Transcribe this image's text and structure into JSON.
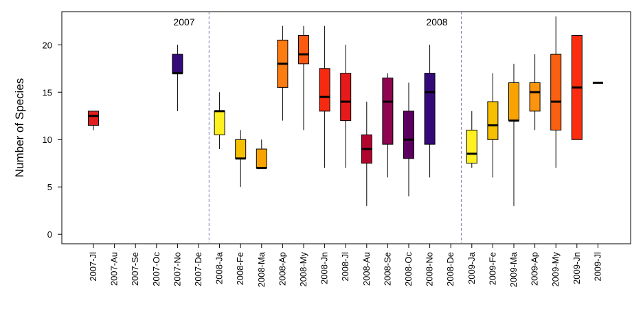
{
  "chart_data": {
    "type": "boxplot",
    "title": "",
    "xlabel": "",
    "ylabel": "Number of Species",
    "ylim": [
      -1,
      23.5
    ],
    "yticks": [
      0,
      5,
      10,
      15,
      20
    ],
    "grid": false,
    "legend": "none",
    "annotations": [
      "2007",
      "2008"
    ],
    "year_dividers_after": [
      "2007-De",
      "2008-De"
    ],
    "divider_color": "#7f7fbf",
    "boxes": [
      {
        "label": "2007-Jl",
        "min": 11,
        "q1": 11.5,
        "median": 12.5,
        "q3": 13,
        "max": 13,
        "color": "#e01e1e"
      },
      {
        "label": "2007-Au"
      },
      {
        "label": "2007-Se"
      },
      {
        "label": "2007-Oc"
      },
      {
        "label": "2007-No",
        "min": 13,
        "q1": 17,
        "median": 17,
        "q3": 19,
        "max": 20,
        "color": "#34097a"
      },
      {
        "label": "2007-De"
      },
      {
        "label": "2008-Ja",
        "min": 9,
        "q1": 10.5,
        "median": 13,
        "q3": 13,
        "max": 15,
        "color": "#fff020"
      },
      {
        "label": "2008-Fe",
        "min": 5,
        "q1": 8,
        "median": 8,
        "q3": 10,
        "max": 11,
        "color": "#f6c000"
      },
      {
        "label": "2008-Ma",
        "min": 7,
        "q1": 7,
        "median": 7,
        "q3": 9,
        "max": 10,
        "color": "#f9a300"
      },
      {
        "label": "2008-Ap",
        "min": 12,
        "q1": 15.5,
        "median": 18,
        "q3": 20.5,
        "max": 22,
        "color": "#fb7c10"
      },
      {
        "label": "2008-My",
        "min": 11,
        "q1": 18,
        "median": 19,
        "q3": 21,
        "max": 22,
        "color": "#fb5a10"
      },
      {
        "label": "2008-Jn",
        "min": 7,
        "q1": 13,
        "median": 14.5,
        "q3": 17.5,
        "max": 22,
        "color": "#f52a10"
      },
      {
        "label": "2008-Jl",
        "min": 7,
        "q1": 12,
        "median": 14,
        "q3": 17,
        "max": 20,
        "color": "#e61a1a"
      },
      {
        "label": "2008-Au",
        "min": 3,
        "q1": 7.5,
        "median": 9,
        "q3": 10.5,
        "max": 14,
        "color": "#b0062e"
      },
      {
        "label": "2008-Se",
        "min": 6,
        "q1": 9.5,
        "median": 14,
        "q3": 16.5,
        "max": 17,
        "color": "#8f0650"
      },
      {
        "label": "2008-Oc",
        "min": 4,
        "q1": 8,
        "median": 10,
        "q3": 13,
        "max": 16,
        "color": "#5c0060"
      },
      {
        "label": "2008-No",
        "min": 6,
        "q1": 9.5,
        "median": 15,
        "q3": 17,
        "max": 20,
        "color": "#34097a"
      },
      {
        "label": "2008-De"
      },
      {
        "label": "2009-Ja",
        "min": 7,
        "q1": 7.5,
        "median": 8.5,
        "q3": 11,
        "max": 13,
        "color": "#fff020"
      },
      {
        "label": "2009-Fe",
        "min": 6,
        "q1": 10,
        "median": 11.5,
        "q3": 14,
        "max": 17,
        "color": "#f6c000"
      },
      {
        "label": "2009-Ma",
        "min": 3,
        "q1": 12,
        "median": 12,
        "q3": 16,
        "max": 18,
        "color": "#f9a300"
      },
      {
        "label": "2009-Ap",
        "min": 11,
        "q1": 13,
        "median": 15,
        "q3": 16,
        "max": 19,
        "color": "#fb9410"
      },
      {
        "label": "2009-My",
        "min": 7,
        "q1": 11,
        "median": 14,
        "q3": 19,
        "max": 23,
        "color": "#fb6010"
      },
      {
        "label": "2009-Jn",
        "min": 10,
        "q1": 10,
        "median": 15.5,
        "q3": 21,
        "max": 21,
        "color": "#fb2d10"
      },
      {
        "label": "2009-Jl",
        "min": 16,
        "q1": 16,
        "median": 16,
        "q3": 16,
        "max": 16,
        "color": "#e01e1e"
      }
    ]
  }
}
